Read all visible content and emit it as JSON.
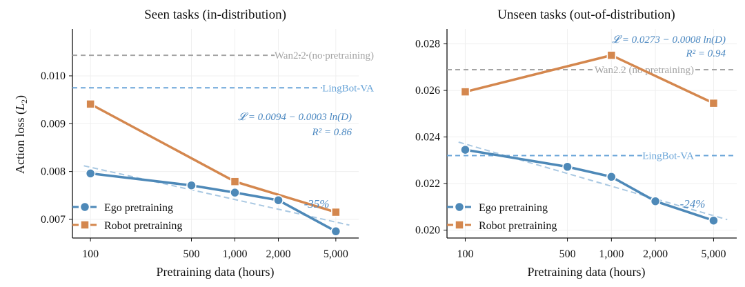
{
  "colors": {
    "ego": "#4e89b8",
    "robot": "#d4874e",
    "wan": "#a3a3a3",
    "lingbot": "#6aa5d8",
    "fit": "#a9c8e2",
    "annot": "#4a87c0",
    "grid": "#efefef"
  },
  "chart_data": [
    {
      "type": "line",
      "title": "Seen tasks (in-distribution)",
      "xlabel": "Pretraining data (hours)",
      "ylabel": "Action loss (",
      "ylabel_symbol": "L",
      "ylabel_sub": "2",
      "ylabel_close": ")",
      "x_scale": "log",
      "x_ticks": [
        100,
        500,
        1000,
        2000,
        5000
      ],
      "x_tick_labels": [
        "100",
        "500",
        "1,000",
        "2,000",
        "5,000"
      ],
      "xlim": [
        75,
        7200
      ],
      "y_ticks": [
        0.007,
        0.008,
        0.009,
        0.01
      ],
      "y_tick_labels": [
        "0.007",
        "0.008",
        "0.009",
        "0.010"
      ],
      "ylim": [
        0.00661,
        0.01098
      ],
      "grid": true,
      "legend_position": "lower-left",
      "series": [
        {
          "name": "Ego pretraining",
          "key": "ego",
          "marker": "circle",
          "x": [
            100,
            500,
            1000,
            2000,
            5000
          ],
          "y": [
            0.00796,
            0.00771,
            0.00756,
            0.0074,
            0.00675
          ]
        },
        {
          "name": "Robot pretraining",
          "key": "robot",
          "marker": "square",
          "x": [
            100,
            1000,
            5000
          ],
          "y": [
            0.00941,
            0.00779,
            0.00715
          ]
        }
      ],
      "ref_lines": [
        {
          "label": "Wan2.2 (no pretraining)",
          "key": "wan",
          "y": 0.01043
        },
        {
          "label": "LingBot-VA",
          "key": "lingbot",
          "y": 0.00975
        }
      ],
      "fit": {
        "x": [
          90,
          6200
        ],
        "y": [
          0.00812,
          0.00688
        ]
      },
      "equation": "𝓛 = 0.0094 − 0.0003 ln(D)",
      "r2": "R² = 0.86",
      "improvement": "-35%"
    },
    {
      "type": "line",
      "title": "Unseen tasks (out-of-distribution)",
      "xlabel": "Pretraining data (hours)",
      "x_scale": "log",
      "x_ticks": [
        100,
        500,
        1000,
        2000,
        5000
      ],
      "x_tick_labels": [
        "100",
        "500",
        "1,000",
        "2,000",
        "5,000"
      ],
      "xlim": [
        75,
        7200
      ],
      "y_ticks": [
        0.02,
        0.022,
        0.024,
        0.026,
        0.028
      ],
      "y_tick_labels": [
        "0.020",
        "0.022",
        "0.024",
        "0.026",
        "0.028"
      ],
      "ylim": [
        0.01966,
        0.02864
      ],
      "grid": true,
      "legend_position": "lower-left",
      "series": [
        {
          "name": "Ego pretraining",
          "key": "ego",
          "marker": "circle",
          "x": [
            100,
            500,
            1000,
            2000,
            5000
          ],
          "y": [
            0.02345,
            0.02272,
            0.02229,
            0.02124,
            0.02041
          ]
        },
        {
          "name": "Robot pretraining",
          "key": "robot",
          "marker": "square",
          "x": [
            100,
            1000,
            5000
          ],
          "y": [
            0.02594,
            0.02751,
            0.02545
          ]
        }
      ],
      "ref_lines": [
        {
          "label": "Wan2.2 (no pretraining)",
          "key": "wan",
          "y": 0.02689
        },
        {
          "label": "LingBot-VA",
          "key": "lingbot",
          "y": 0.0232
        }
      ],
      "fit": {
        "x": [
          90,
          6200
        ],
        "y": [
          0.02378,
          0.02045
        ]
      },
      "equation": "𝓛 = 0.0273 − 0.0008 ln(D)",
      "r2": "R² = 0.94",
      "improvement": "-24%"
    }
  ]
}
